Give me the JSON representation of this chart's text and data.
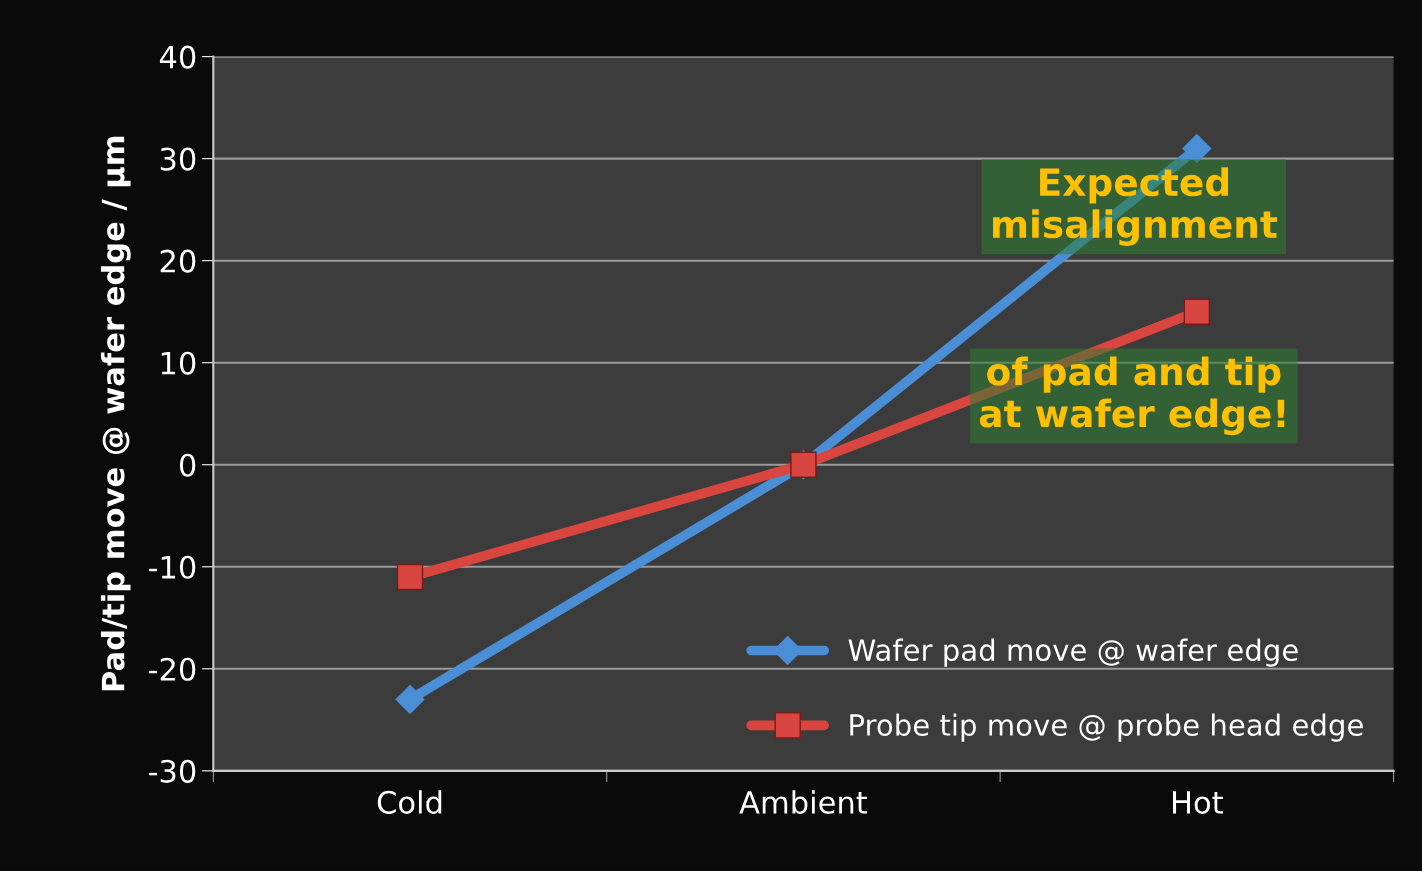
{
  "chart_data": {
    "type": "line",
    "ylabel": "Pad/tip move @ wafer edge / µm",
    "categories": [
      "Cold",
      "Ambient",
      "Hot"
    ],
    "series": [
      {
        "name": "Wafer pad move @ wafer edge",
        "color": "#4a8fd6",
        "marker": "diamond",
        "values": [
          -23,
          0,
          31
        ]
      },
      {
        "name": "Probe tip move @ probe head edge",
        "color": "#d9463f",
        "marker": "square",
        "values": [
          -11,
          0,
          15
        ]
      }
    ],
    "ylim": [
      -30,
      40
    ],
    "yticks": [
      -30,
      -20,
      -10,
      0,
      10,
      20,
      30,
      40
    ],
    "grid": "y",
    "legend": "bottom right",
    "annotations": [
      "Expected\nmisalignment",
      "of pad and tip\nat wafer edge!"
    ]
  }
}
